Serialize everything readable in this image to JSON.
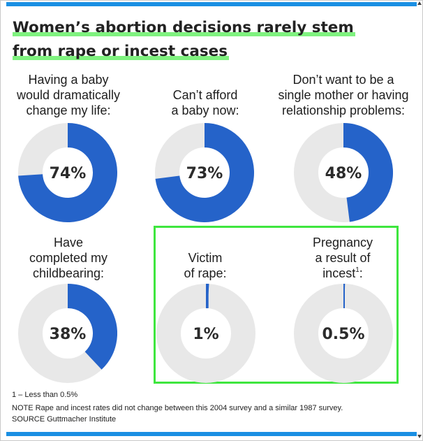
{
  "colors": {
    "accent_bar": "#1a8fe3",
    "highlight": "#3ee63e",
    "donut_fill": "#2563c9",
    "donut_track": "#e8e8e8"
  },
  "chart_data": {
    "type": "donut",
    "title_lines": [
      "Women’s abortion decisions rarely stem",
      "from rape or incest cases"
    ],
    "series": [
      {
        "label": "Having a baby\nwould dramatically\nchange my life:",
        "value": 74,
        "display": "74%"
      },
      {
        "label": "Can’t afford\na baby now:",
        "value": 73,
        "display": "73%"
      },
      {
        "label": "Don’t want to be a\nsingle mother or having\nrelationship problems:",
        "value": 48,
        "display": "48%"
      },
      {
        "label": "Have\ncompleted my\nchildbearing:",
        "value": 38,
        "display": "38%"
      },
      {
        "label": "Victim\nof rape:",
        "value": 1,
        "display": "1%"
      },
      {
        "label": "Pregnancy\na result of\nincest",
        "sup": "1",
        "label_suffix": ":",
        "value": 0.5,
        "display": "0.5%"
      }
    ],
    "footnote": "1 – Less than 0.5%",
    "note": "NOTE Rape and incest rates did not change between this 2004 survey and a similar 1987 survey.",
    "source": "SOURCE Guttmacher Institute"
  }
}
